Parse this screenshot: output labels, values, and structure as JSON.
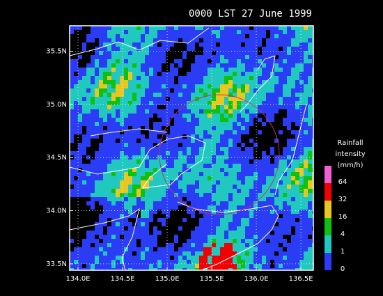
{
  "title": "0000 LST 27 June 1999",
  "map": {
    "xlim": [
      133.906,
      136.64
    ],
    "ylim": [
      33.44,
      35.74
    ],
    "xticks": [
      {
        "value": 134.0,
        "label": "134.0E"
      },
      {
        "value": 134.5,
        "label": "134.5E"
      },
      {
        "value": 135.0,
        "label": "135.0E"
      },
      {
        "value": 135.5,
        "label": "135.5E"
      },
      {
        "value": 136.0,
        "label": "136.0E"
      },
      {
        "value": 136.5,
        "label": "136.5E"
      }
    ],
    "yticks": [
      {
        "value": 33.5,
        "label": "33.5N"
      },
      {
        "value": 34.0,
        "label": "34.0N"
      },
      {
        "value": 34.5,
        "label": "34.5N"
      },
      {
        "value": 35.0,
        "label": "35.0N"
      },
      {
        "value": 35.5,
        "label": "35.5N"
      }
    ]
  },
  "legend": {
    "title": [
      "Rainfall",
      "intensity",
      "(mm/h)"
    ],
    "levels": [
      0,
      1,
      4,
      16,
      32,
      64
    ],
    "colors": [
      "#2a3cf5",
      "#20c8c0",
      "#10c010",
      "#e8c820",
      "#f00000",
      "#f060d0"
    ]
  }
}
